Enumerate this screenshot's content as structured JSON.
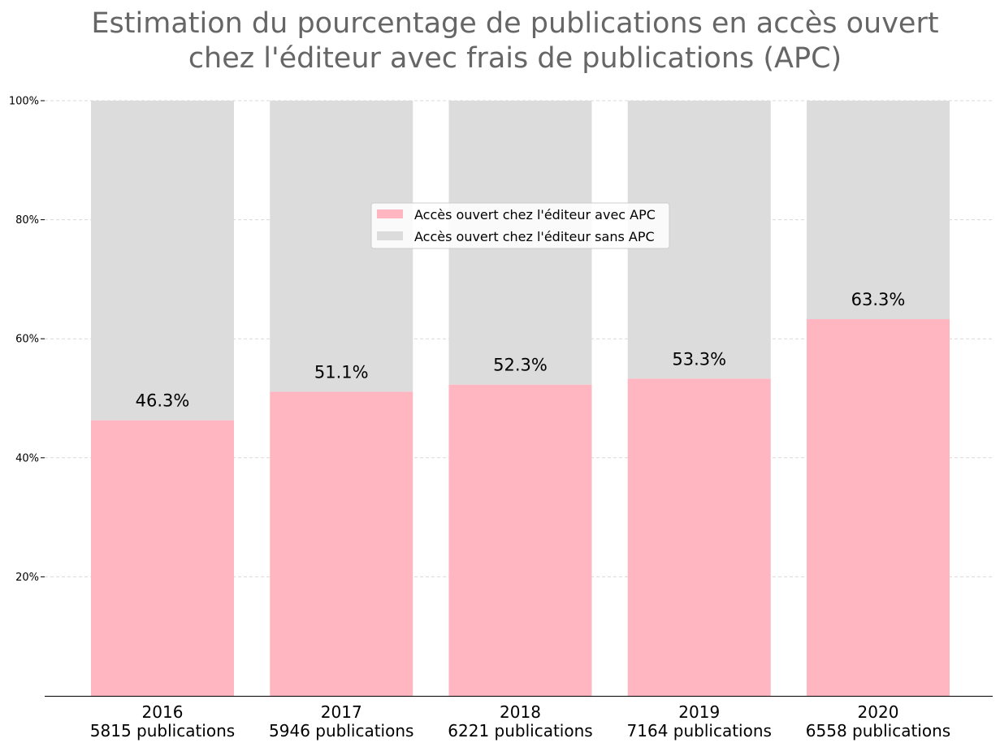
{
  "chart_data": {
    "type": "bar",
    "stacked": true,
    "title": "Estimation du pourcentage de publications en accès ouvert\nchez l'éditeur avec frais de publications (APC)",
    "categories": [
      "2016",
      "2017",
      "2018",
      "2019",
      "2020"
    ],
    "category_sublabels": [
      "5815 publications",
      "5946 publications",
      "6221 publications",
      "7164 publications",
      "6558 publications"
    ],
    "series": [
      {
        "name": "Accès ouvert chez l'éditeur avec APC",
        "color": "#ffb6c1",
        "values": [
          46.3,
          51.1,
          52.3,
          53.3,
          63.3
        ]
      },
      {
        "name": "Accès ouvert chez l'éditeur sans APC",
        "color": "#dcdcdc",
        "values": [
          53.7,
          48.9,
          47.7,
          46.7,
          36.7
        ]
      }
    ],
    "data_labels": [
      "46.3%",
      "51.1%",
      "52.3%",
      "53.3%",
      "63.3%"
    ],
    "ylim": [
      0,
      100
    ],
    "yticks": [
      20,
      40,
      60,
      80,
      100
    ],
    "ytick_labels": [
      "20%",
      "40%",
      "60%",
      "80%",
      "100%"
    ],
    "grid": "y-dashed",
    "legend_position": "upper-center"
  }
}
